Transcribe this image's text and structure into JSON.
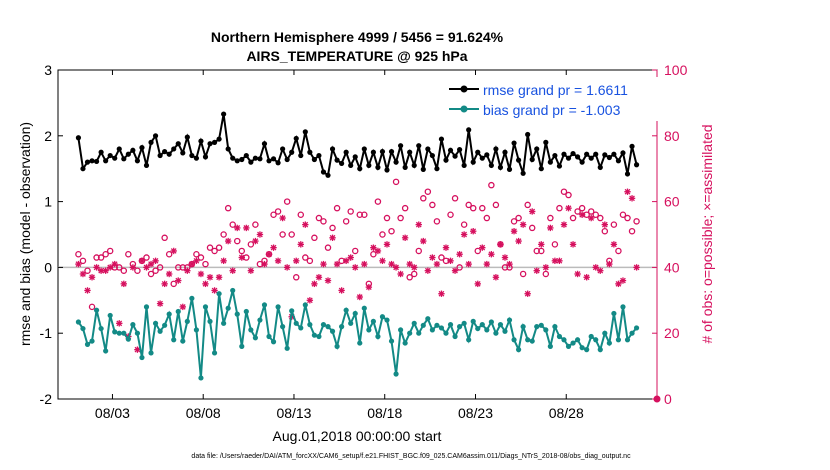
{
  "chart_data": {
    "type": "line",
    "title_line1": "Northern Hemisphere 4999 / 5456 = 91.624%",
    "title_line2": "AIRS_TEMPERATURE @ 925 hPa",
    "xlabel": "Aug.01,2018 00:00:00 start",
    "ylabel_left": "rmse and bias (model - observation)",
    "ylabel_right": "# of obs: o=possible; ×=assimilated",
    "footer": "data file: /Users/raeder/DAI/ATM_forcXX/CAM6_setup/f.e21.FHIST_BGC.f09_025.CAM6assim.011/Diags_NTrS_2018-08/obs_diag_output.nc",
    "xlim": [
      0,
      33
    ],
    "ylim_left": [
      -2,
      3
    ],
    "ylim_right": [
      0,
      100
    ],
    "left_ticks": [
      "-2",
      "-1",
      "0",
      "1",
      "2",
      "3"
    ],
    "right_ticks": [
      "0",
      "20",
      "40",
      "60",
      "80",
      "100"
    ],
    "x_ticks": [
      {
        "pos": 3,
        "label": "08/03"
      },
      {
        "pos": 8,
        "label": "08/08"
      },
      {
        "pos": 13,
        "label": "08/13"
      },
      {
        "pos": 18,
        "label": "08/18"
      },
      {
        "pos": 23,
        "label": "08/23"
      },
      {
        "pos": 28,
        "label": "08/28"
      }
    ],
    "legend": {
      "placement": "top-right",
      "entries": [
        "rmse grand pr = 1.6611",
        "bias grand pr = -1.003"
      ]
    },
    "n_points": 124,
    "x_start": 1.125,
    "x_step": 0.25,
    "series": [
      {
        "name": "rmse",
        "color": "#000000",
        "values": [
          1.97,
          1.5,
          1.6,
          1.62,
          1.61,
          1.75,
          1.62,
          1.7,
          1.66,
          1.8,
          1.65,
          1.72,
          1.78,
          1.62,
          1.82,
          1.55,
          1.9,
          2.0,
          1.7,
          1.76,
          1.72,
          1.8,
          1.88,
          1.74,
          1.98,
          1.7,
          1.66,
          1.92,
          1.68,
          1.88,
          1.9,
          1.95,
          2.33,
          1.8,
          1.66,
          1.62,
          1.64,
          1.7,
          1.6,
          1.66,
          1.65,
          1.88,
          1.62,
          1.65,
          1.59,
          1.8,
          1.64,
          1.75,
          1.96,
          1.7,
          2.06,
          1.75,
          1.64,
          1.7,
          1.45,
          1.4,
          1.8,
          1.63,
          1.58,
          1.75,
          1.55,
          1.68,
          1.5,
          1.8,
          1.55,
          1.75,
          1.52,
          1.76,
          1.48,
          1.76,
          1.6,
          1.85,
          1.52,
          1.75,
          1.55,
          1.85,
          1.49,
          1.8,
          1.7,
          1.5,
          1.95,
          1.63,
          1.78,
          1.69,
          1.79,
          1.55,
          2.09,
          1.6,
          1.75,
          1.66,
          1.71,
          1.55,
          1.8,
          1.52,
          1.75,
          1.49,
          1.89,
          1.63,
          1.43,
          2.02,
          1.64,
          1.8,
          1.5,
          1.9,
          1.6,
          1.7,
          1.54,
          1.72,
          1.66,
          1.73,
          1.68,
          1.6,
          1.72,
          1.66,
          1.72,
          1.52,
          1.71,
          1.67,
          1.72,
          1.62,
          1.74,
          1.42,
          1.84,
          1.56
        ]
      },
      {
        "name": "bias",
        "color": "#138a86",
        "values": [
          -0.83,
          -0.93,
          -1.17,
          -1.12,
          -0.65,
          -0.93,
          -1.27,
          -0.73,
          -0.98,
          -1.0,
          -1.0,
          -1.09,
          -0.87,
          -1.0,
          -1.37,
          -0.6,
          -1.3,
          -0.85,
          -0.97,
          -0.88,
          -0.71,
          -1.1,
          -0.67,
          -1.12,
          -0.82,
          -0.47,
          -0.95,
          -1.68,
          -0.6,
          -0.82,
          -1.3,
          -0.4,
          -0.85,
          -0.62,
          -0.35,
          -0.71,
          -1.2,
          -0.67,
          -0.95,
          -1.07,
          -0.8,
          -0.57,
          -1.05,
          -1.13,
          -0.6,
          -0.9,
          -1.23,
          -0.66,
          -0.85,
          -0.92,
          -0.57,
          -0.87,
          -1.03,
          -1.05,
          -0.87,
          -0.9,
          -0.97,
          -1.2,
          -0.9,
          -0.65,
          -0.85,
          -0.7,
          -1.15,
          -0.62,
          -0.95,
          -0.82,
          -1.05,
          -0.75,
          -0.8,
          -1.12,
          -1.62,
          -0.95,
          -1.15,
          -1.0,
          -0.85,
          -1.0,
          -0.88,
          -0.78,
          -0.95,
          -0.88,
          -0.92,
          -1.0,
          -0.87,
          -1.05,
          -0.9,
          -0.85,
          -1.1,
          -0.82,
          -0.93,
          -0.87,
          -0.95,
          -0.83,
          -1.0,
          -0.87,
          -0.97,
          -0.8,
          -1.1,
          -1.25,
          -0.9,
          -1.1,
          -1.12,
          -0.9,
          -0.88,
          -0.95,
          -1.2,
          -0.9,
          -1.05,
          -1.1,
          -1.2,
          -1.15,
          -1.1,
          -1.22,
          -1.25,
          -1.05,
          -1.1,
          -1.25,
          -1.0,
          -1.15,
          -0.7,
          -1.1,
          -0.6,
          -1.1,
          -1.0,
          -0.92
        ]
      }
    ],
    "obs_possible": {
      "color": "#d6105e",
      "values": [
        44,
        42,
        39,
        28,
        43,
        43,
        44,
        45,
        40,
        40,
        39,
        44,
        41,
        39,
        42,
        43,
        38,
        39,
        40,
        49,
        44,
        35,
        40,
        40,
        40,
        41,
        44,
        43,
        41,
        46,
        45,
        46,
        50,
        58,
        53,
        48,
        45,
        43,
        47,
        53,
        41,
        42,
        44,
        56,
        57,
        50,
        60,
        50,
        37,
        56,
        43,
        42,
        49,
        55,
        54,
        46,
        52,
        58,
        42,
        54,
        57,
        45,
        56,
        56,
        35,
        44,
        60,
        50,
        55,
        51,
        66,
        55,
        58,
        37,
        38,
        45,
        61,
        63,
        59,
        54,
        43,
        42,
        56,
        61,
        40,
        53,
        59,
        58,
        45,
        58,
        55,
        65,
        59,
        47,
        40,
        40,
        54,
        55,
        38,
        59,
        52,
        45,
        45,
        38,
        55,
        47,
        58,
        63,
        62,
        55,
        57,
        58,
        56,
        57,
        56,
        55,
        51,
        42,
        53,
        45,
        56,
        55,
        51,
        54
      ]
    },
    "obs_assimilated": {
      "color": "#d6105e",
      "values": [
        41,
        38,
        33,
        37,
        40,
        39,
        39,
        40,
        41,
        23,
        35,
        19,
        40,
        15,
        42,
        40,
        41,
        42,
        29,
        35,
        38,
        45,
        36,
        28,
        39,
        41,
        42,
        38,
        35,
        37,
        33,
        37,
        42,
        48,
        39,
        52,
        43,
        52,
        39,
        48,
        50,
        41,
        44,
        46,
        42,
        55,
        40,
        25,
        42,
        47,
        53,
        30,
        35,
        37,
        41,
        36,
        49,
        41,
        33,
        42,
        43,
        40,
        31,
        41,
        34,
        46,
        45,
        42,
        47,
        41,
        40,
        38,
        49,
        41,
        40,
        53,
        48,
        39,
        43,
        41,
        32,
        46,
        42,
        39,
        44,
        50,
        41,
        51,
        35,
        46,
        41,
        44,
        37,
        47,
        43,
        41,
        51,
        48,
        53,
        32,
        57,
        39,
        47,
        40,
        52,
        42,
        42,
        53,
        58,
        47,
        38,
        56,
        37,
        55,
        40,
        39,
        53,
        41,
        47,
        35,
        36,
        63,
        61,
        40
      ]
    }
  }
}
